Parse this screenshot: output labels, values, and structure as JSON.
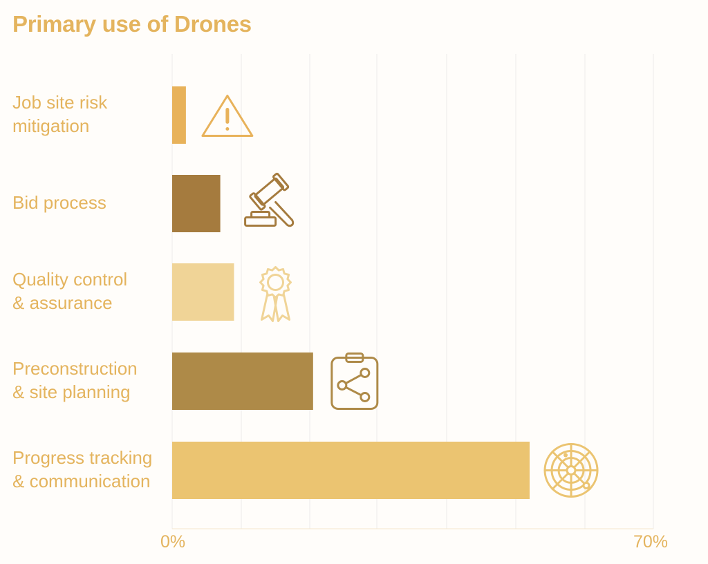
{
  "chart_data": {
    "type": "bar",
    "orientation": "horizontal",
    "title": "Primary use of Drones",
    "categories": [
      "Job site risk mitigation",
      "Bid process",
      "Quality control & assurance",
      "Preconstruction & site planning",
      "Progress tracking & communication"
    ],
    "label_lines": [
      [
        "Job site risk",
        "mitigation"
      ],
      [
        "Bid process"
      ],
      [
        "Quality control",
        "& assurance"
      ],
      [
        "Preconstruction",
        "& site planning"
      ],
      [
        "Progress tracking",
        "& communication"
      ]
    ],
    "values": [
      2,
      7,
      9,
      20.5,
      52
    ],
    "unit": "%",
    "xlim": [
      0,
      70
    ],
    "tick_labels": [
      "0%",
      "70%"
    ],
    "grid": true,
    "colors": [
      "#e8b25a",
      "#a57b3e",
      "#f0d497",
      "#ae8a48",
      "#ebc471"
    ],
    "icons": [
      "warning-icon",
      "gavel-icon",
      "award-ribbon-icon",
      "clipboard-share-icon",
      "radar-icon"
    ]
  }
}
